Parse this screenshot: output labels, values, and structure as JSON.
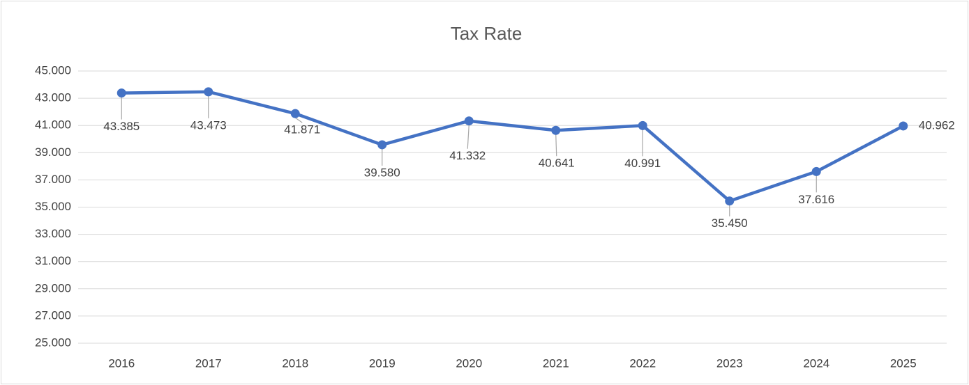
{
  "chart_data": {
    "type": "line",
    "title": "Tax Rate",
    "categories": [
      "2016",
      "2017",
      "2018",
      "2019",
      "2020",
      "2021",
      "2022",
      "2023",
      "2024",
      "2025"
    ],
    "series": [
      {
        "name": "Tax Rate",
        "color": "#4472c4",
        "values": [
          43.385,
          43.473,
          41.871,
          39.58,
          41.332,
          40.641,
          40.991,
          35.45,
          37.616,
          40.962
        ],
        "value_labels": [
          "43.385",
          "43.473",
          "41.871",
          "39.580",
          "41.332",
          "40.641",
          "40.991",
          "35.450",
          "37.616",
          "40.962"
        ]
      }
    ],
    "ylim": [
      25,
      45
    ],
    "yticks": [
      {
        "value": 25,
        "label": "25.000"
      },
      {
        "value": 27,
        "label": "27.000"
      },
      {
        "value": 29,
        "label": "29.000"
      },
      {
        "value": 31,
        "label": "31.000"
      },
      {
        "value": 33,
        "label": "33.000"
      },
      {
        "value": 35,
        "label": "35.000"
      },
      {
        "value": 37,
        "label": "37.000"
      },
      {
        "value": 39,
        "label": "39.000"
      },
      {
        "value": 41,
        "label": "41.000"
      },
      {
        "value": 43,
        "label": "43.000"
      },
      {
        "value": 45,
        "label": "45.000"
      }
    ],
    "grid": true
  }
}
